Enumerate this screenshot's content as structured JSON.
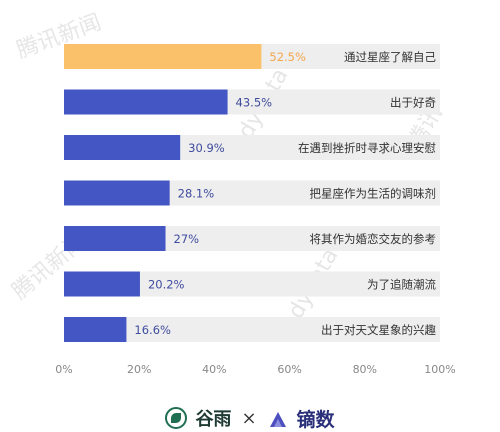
{
  "chart_data": {
    "type": "bar",
    "orientation": "horizontal",
    "categories": [
      "通过星座了解自己",
      "出于好奇",
      "在遇到挫折时寻求心理安慰",
      "把星座作为生活的调味剂",
      "将其作为婚恋交友的参考",
      "为了追随潮流",
      "出于对天文星象的兴趣"
    ],
    "values": [
      52.5,
      43.5,
      30.9,
      28.1,
      27,
      20.2,
      16.6
    ],
    "data_labels": [
      "52.5%",
      "43.5%",
      "30.9%",
      "28.1%",
      "27%",
      "20.2%",
      "16.6%"
    ],
    "xlim": [
      0,
      100
    ],
    "xticks": [
      "0%",
      "20%",
      "40%",
      "60%",
      "80%",
      "100%"
    ],
    "title": "",
    "xlabel": "",
    "ylabel": "",
    "grid": false,
    "legend": "none",
    "colors": {
      "highlight": "#FBC06A",
      "bar": "#4455C4",
      "track": "#EEEEEE",
      "highlight_label": "#F2A64E",
      "bar_label": "#3F4C9E",
      "category_label": "#333333",
      "tick_label": "#888888"
    }
  },
  "footer": {
    "brand1": "谷雨",
    "separator": "×",
    "brand2": "镝数",
    "brand1_icon": "leaf-circle-icon",
    "brand2_icon": "triangle-logo-icon"
  }
}
